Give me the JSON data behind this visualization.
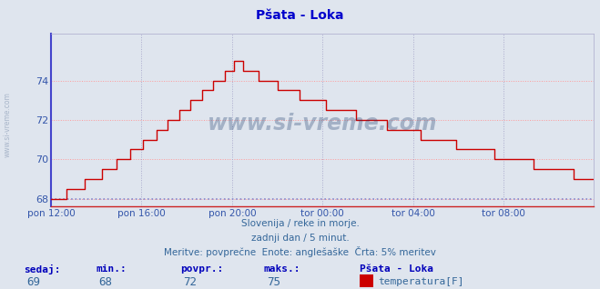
{
  "title": "Pšata - Loka",
  "bg_color": "#dfe5ee",
  "plot_bg_color": "#dfe5ee",
  "line_color": "#cc0000",
  "grid_color_h": "#ff9999",
  "grid_color_v": "#aaaacc",
  "hline_color": "#8888cc",
  "hline_value": 68.0,
  "ylim": [
    67.6,
    76.4
  ],
  "yticks": [
    68,
    70,
    72,
    74
  ],
  "tick_color": "#3355aa",
  "title_color": "#0000cc",
  "xtick_labels": [
    "pon 12:00",
    "pon 16:00",
    "pon 20:00",
    "tor 00:00",
    "tor 04:00",
    "tor 08:00"
  ],
  "xtick_positions": [
    0,
    48,
    96,
    144,
    192,
    240
  ],
  "n_points": 289,
  "subtitle_lines": [
    "Slovenija / reke in morje.",
    "zadnji dan / 5 minut.",
    "Meritve: povprečne  Enote: anglešaške  Črta: 5% meritev"
  ],
  "stats_labels": [
    "sedaj:",
    "min.:",
    "povpr.:",
    "maks.:"
  ],
  "stats_values": [
    "69",
    "68",
    "72",
    "75"
  ],
  "legend_name": "Pšata - Loka",
  "legend_unit": "temperatura[F]",
  "legend_color": "#cc0000",
  "watermark": "www.si-vreme.com",
  "watermark_color": "#1a3a6a",
  "watermark_alpha": 0.3,
  "left_spine_color": "#4444cc",
  "bottom_spine_color": "#cc2222"
}
